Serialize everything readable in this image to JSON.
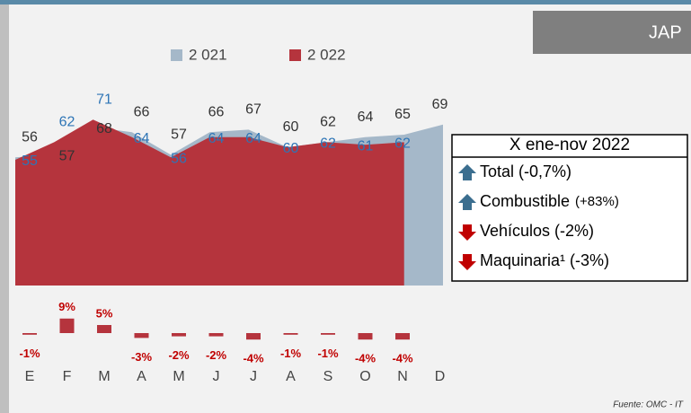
{
  "chart_data": [
    {
      "type": "area",
      "categories": [
        "E",
        "F",
        "M",
        "A",
        "M",
        "J",
        "J",
        "A",
        "S",
        "O",
        "N",
        "D"
      ],
      "series": [
        {
          "name": "2 021",
          "color": "#a5b8c9",
          "label_color": "#333333",
          "values": [
            56,
            57,
            68,
            66,
            57,
            66,
            67,
            60,
            62,
            64,
            65,
            69
          ]
        },
        {
          "name": "2 022",
          "color": "#b5343d",
          "label_color": "#2e75b6",
          "values": [
            55,
            62,
            71,
            64,
            56,
            64,
            64,
            60,
            62,
            61,
            62,
            null
          ]
        }
      ]
    },
    {
      "type": "bar",
      "color": "#b5343d",
      "label_color": "#c00000",
      "values": [
        -1,
        9,
        5,
        -3,
        -2,
        -2,
        -4,
        -1,
        -1,
        -4,
        -4
      ],
      "value_labels": [
        "-1%",
        "9%",
        "5%",
        "-3%",
        "-2%",
        "-2%",
        "-4%",
        "-1%",
        "-1%",
        "-4%",
        "-4%"
      ]
    }
  ],
  "banner": "JAP",
  "summary": {
    "title": "X ene-nov 2022",
    "items": [
      {
        "text": "Total (-0,7%)",
        "trend": "up"
      },
      {
        "text": "Combustible",
        "note": "(+83%)",
        "trend": "up"
      },
      {
        "text": "Vehículos (-2%)",
        "trend": "down"
      },
      {
        "text": "Maquinaria¹ (-3%)",
        "trend": "down"
      }
    ]
  },
  "source": "Fuente: OMC - IT"
}
